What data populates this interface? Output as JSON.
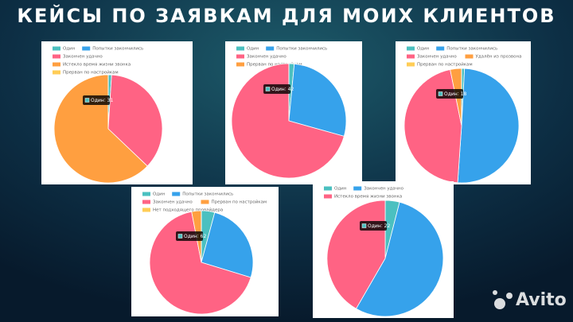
{
  "title": "КЕЙСЫ ПО ЗАЯВКАМ ДЛЯ МОИХ КЛИЕНТОВ",
  "watermark": "Avito",
  "chart_data": [
    {
      "type": "pie",
      "categories": [
        "Один",
        "Попытки закончились",
        "Закончен удачно",
        "Истекло время жизни звонка",
        "Прерван по настройкам"
      ],
      "values": [
        31,
        0,
        1120,
        1950,
        0
      ],
      "colors": [
        "#4bc0c0",
        "#36a2eb",
        "#ff6384",
        "#ff9f40",
        "#ffcd56"
      ]
    },
    {
      "type": "pie",
      "categories": [
        "Один",
        "Попытки закончились",
        "Закончен удачно",
        "Прерван по настройкам"
      ],
      "values": [
        42,
        780,
        1980,
        0
      ],
      "colors": [
        "#4bc0c0",
        "#36a2eb",
        "#ff6384",
        "#ff9f40"
      ]
    },
    {
      "type": "pie",
      "categories": [
        "Один",
        "Попытки закончились",
        "Закончен удачно",
        "Удалён из прозвона",
        "Прерван по настройкам"
      ],
      "values": [
        18,
        1100,
        1000,
        70,
        0
      ],
      "colors": [
        "#4bc0c0",
        "#36a2eb",
        "#ff6384",
        "#ff9f40",
        "#ffcd56"
      ]
    },
    {
      "type": "pie",
      "categories": [
        "Один",
        "Попытки закончились",
        "Закончен удачно",
        "Прерван по настройкам",
        "Нет подходящего провайдера"
      ],
      "values": [
        62,
        380,
        1000,
        45,
        0
      ],
      "colors": [
        "#4bc0c0",
        "#36a2eb",
        "#ff6384",
        "#ff9f40",
        "#ffcd56"
      ]
    },
    {
      "type": "pie",
      "categories": [
        "Один",
        "Закончен удачно",
        "Истекло время жизни звонка"
      ],
      "values": [
        22,
        300,
        230
      ],
      "colors": [
        "#4bc0c0",
        "#36a2eb",
        "#ff6384"
      ]
    }
  ]
}
